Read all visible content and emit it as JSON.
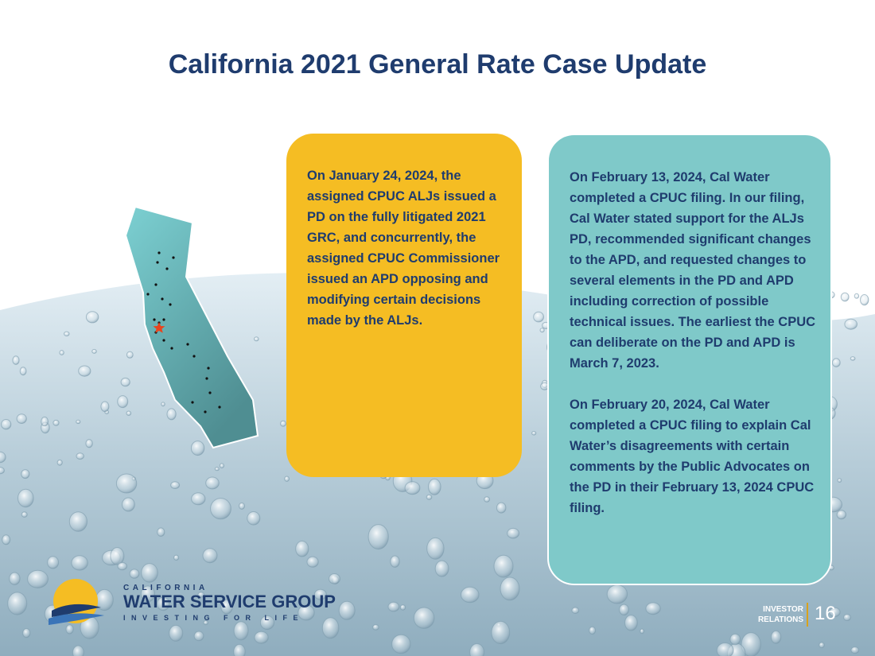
{
  "slide": {
    "title": "California 2021 General Rate Case Update",
    "yellow_box": {
      "text": "On January 24, 2024, the assigned CPUC ALJs issued a PD on the fully litigated 2021 GRC, and concurrently, the assigned CPUC Commissioner issued an APD opposing and modifying certain decisions made by the ALJs."
    },
    "teal_box": {
      "paragraph_1": "On February 13, 2024, Cal Water completed a CPUC filing.  In our filing, Cal Water stated support for the ALJs PD, recommended significant changes to the APD, and requested changes to several elements in the PD and APD including correction of possible technical issues.  The earliest the CPUC can deliberate on the PD and APD is March 7, 2023.",
      "paragraph_2": "On February 20, 2024, Cal Water completed a CPUC filing to explain Cal Water’s disagreements with certain comments by the Public Advocates on the PD in their February 13, 2024 CPUC filing."
    },
    "logo": {
      "top_line": "CALIFORNIA",
      "main_line": "WATER SERVICE GROUP",
      "tagline": "INVESTING FOR LIFE"
    },
    "footer": {
      "label_line1": "INVESTOR",
      "label_line2": "RELATIONS",
      "page_number": "16"
    },
    "colors": {
      "title": "#1f3c6e",
      "yellow_box": "#f5bd23",
      "teal_box": "#7fc9c9",
      "map_fill": "#6cbfc2",
      "star": "#e8451e"
    },
    "icons": {
      "map": "california-map-icon",
      "star": "headquarters-star-icon",
      "logo_sun": "sun-wave-logo-icon"
    }
  }
}
